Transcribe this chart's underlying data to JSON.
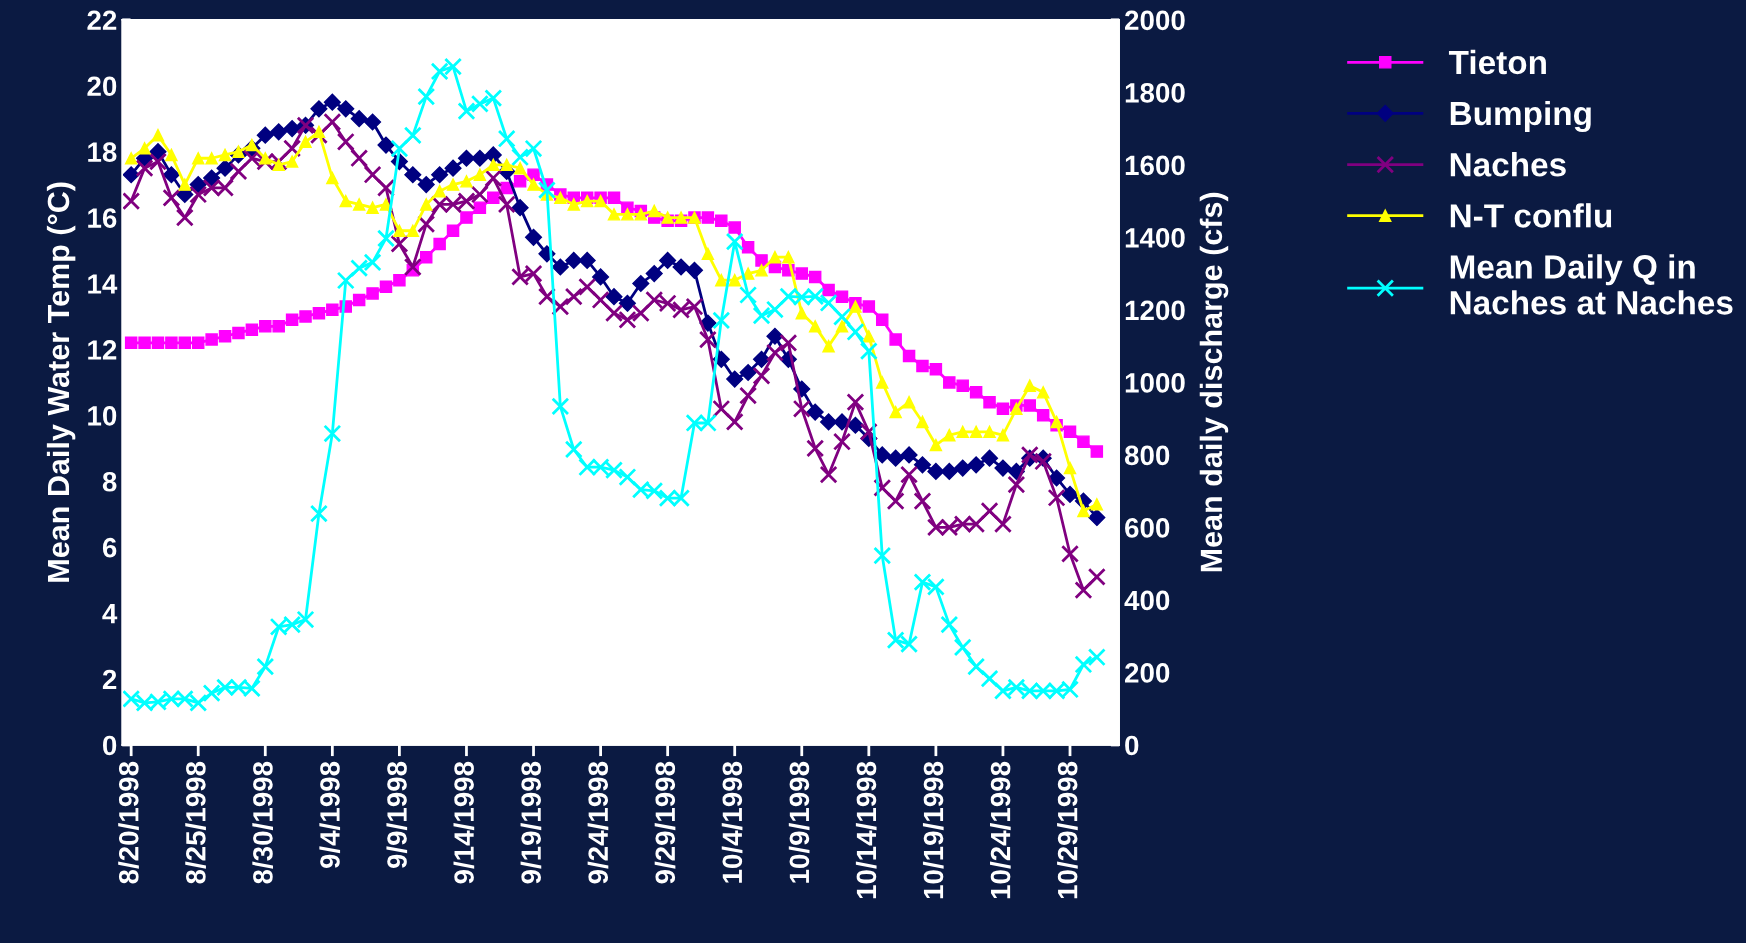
{
  "chart_data": {
    "type": "line",
    "x": [
      "1998-08-20",
      "1998-08-21",
      "1998-08-22",
      "1998-08-23",
      "1998-08-24",
      "1998-08-25",
      "1998-08-26",
      "1998-08-27",
      "1998-08-28",
      "1998-08-29",
      "1998-08-30",
      "1998-08-31",
      "1998-09-01",
      "1998-09-02",
      "1998-09-03",
      "1998-09-04",
      "1998-09-05",
      "1998-09-06",
      "1998-09-07",
      "1998-09-08",
      "1998-09-09",
      "1998-09-10",
      "1998-09-11",
      "1998-09-12",
      "1998-09-13",
      "1998-09-14",
      "1998-09-15",
      "1998-09-16",
      "1998-09-17",
      "1998-09-18",
      "1998-09-19",
      "1998-09-20",
      "1998-09-21",
      "1998-09-22",
      "1998-09-23",
      "1998-09-24",
      "1998-09-25",
      "1998-09-26",
      "1998-09-27",
      "1998-09-28",
      "1998-09-29",
      "1998-09-30",
      "1998-10-01",
      "1998-10-02",
      "1998-10-03",
      "1998-10-04",
      "1998-10-05",
      "1998-10-06",
      "1998-10-07",
      "1998-10-08",
      "1998-10-09",
      "1998-10-10",
      "1998-10-11",
      "1998-10-12",
      "1998-10-13",
      "1998-10-14",
      "1998-10-15",
      "1998-10-16",
      "1998-10-17",
      "1998-10-18",
      "1998-10-19",
      "1998-10-20",
      "1998-10-21",
      "1998-10-22",
      "1998-10-23",
      "1998-10-24",
      "1998-10-25",
      "1998-10-26",
      "1998-10-27",
      "1998-10-28",
      "1998-10-29",
      "1998-10-30",
      "1998-10-31"
    ],
    "ylabel": "Mean Daily Water Temp (°C)",
    "y2label": "Mean daily discharge (cfs)",
    "xlim": [
      "1998-08-19T08:00",
      "1998-11-01T16:00"
    ],
    "xticks": [
      {
        "value": "1998-08-20",
        "label": "8/20/1998"
      },
      {
        "value": "1998-08-25",
        "label": "8/25/1998"
      },
      {
        "value": "1998-08-30",
        "label": "8/30/1998"
      },
      {
        "value": "1998-09-04",
        "label": "9/4/1998"
      },
      {
        "value": "1998-09-09",
        "label": "9/9/1998"
      },
      {
        "value": "1998-09-14",
        "label": "9/14/1998"
      },
      {
        "value": "1998-09-19",
        "label": "9/19/1998"
      },
      {
        "value": "1998-09-24",
        "label": "9/24/1998"
      },
      {
        "value": "1998-09-29",
        "label": "9/29/1998"
      },
      {
        "value": "1998-10-04",
        "label": "10/4/1998"
      },
      {
        "value": "1998-10-09",
        "label": "10/9/1998"
      },
      {
        "value": "1998-10-14",
        "label": "10/14/1998"
      },
      {
        "value": "1998-10-19",
        "label": "10/19/1998"
      },
      {
        "value": "1998-10-24",
        "label": "10/24/1998"
      },
      {
        "value": "1998-10-29",
        "label": "10/29/1998"
      }
    ],
    "ylim": [
      0,
      22
    ],
    "yticks": [
      0,
      2,
      4,
      6,
      8,
      10,
      12,
      14,
      16,
      18,
      20,
      22
    ],
    "y2lim": [
      0,
      2000
    ],
    "y2ticks": [
      0,
      200,
      400,
      600,
      800,
      1000,
      1200,
      1400,
      1600,
      1800,
      2000
    ],
    "grid": false,
    "legend": "right",
    "line_style": "solid",
    "series": [
      {
        "name": "Tieton",
        "color": "#ff00ff",
        "marker": "square",
        "values": [
          12.2,
          12.2,
          12.2,
          12.2,
          12.2,
          12.2,
          12.3,
          12.4,
          12.5,
          12.6,
          12.7,
          12.7,
          12.9,
          13.0,
          13.1,
          13.2,
          13.3,
          13.5,
          13.7,
          13.9,
          14.1,
          14.4,
          14.8,
          15.2,
          15.6,
          16.0,
          16.3,
          16.6,
          16.9,
          17.1,
          17.3,
          17.0,
          16.7,
          16.6,
          16.6,
          16.6,
          16.6,
          16.3,
          16.2,
          16.0,
          15.9,
          15.9,
          16.0,
          16.0,
          15.9,
          15.7,
          15.1,
          14.7,
          14.5,
          14.4,
          14.3,
          14.2,
          13.8,
          13.6,
          13.4,
          13.3,
          12.9,
          12.3,
          11.8,
          11.5,
          11.4,
          11.0,
          10.9,
          10.7,
          10.4,
          10.2,
          10.3,
          10.3,
          10.0,
          9.7,
          9.5,
          9.2,
          8.9
        ]
      },
      {
        "name": "Bumping",
        "color": "#000080",
        "marker": "diamond",
        "values": [
          17.3,
          17.8,
          18.0,
          17.3,
          16.7,
          17.0,
          17.2,
          17.5,
          17.9,
          18.1,
          18.5,
          18.6,
          18.7,
          18.8,
          19.3,
          19.5,
          19.3,
          19.0,
          18.9,
          18.2,
          17.7,
          17.3,
          17.0,
          17.3,
          17.5,
          17.8,
          17.8,
          17.9,
          17.4,
          16.3,
          15.4,
          14.9,
          14.5,
          14.7,
          14.7,
          14.2,
          13.6,
          13.4,
          14.0,
          14.3,
          14.7,
          14.5,
          14.4,
          12.8,
          11.7,
          11.1,
          11.3,
          11.7,
          12.4,
          11.7,
          10.8,
          10.1,
          9.8,
          9.8,
          9.7,
          9.3,
          8.8,
          8.7,
          8.8,
          8.5,
          8.3,
          8.3,
          8.4,
          8.5,
          8.7,
          8.4,
          8.3,
          8.7,
          8.7,
          8.1,
          7.6,
          7.4,
          6.9
        ]
      },
      {
        "name": "Naches",
        "color": "#800080",
        "marker": "cross",
        "values": [
          16.5,
          17.5,
          17.7,
          16.6,
          16.0,
          16.7,
          16.9,
          16.9,
          17.4,
          17.8,
          17.7,
          17.7,
          18.1,
          18.8,
          18.5,
          18.9,
          18.3,
          17.8,
          17.3,
          16.9,
          15.2,
          14.5,
          15.8,
          16.4,
          16.4,
          16.5,
          16.7,
          17.2,
          16.4,
          14.2,
          14.3,
          13.6,
          13.3,
          13.6,
          13.9,
          13.5,
          13.1,
          12.9,
          13.1,
          13.5,
          13.4,
          13.2,
          13.3,
          12.3,
          10.2,
          9.8,
          10.6,
          11.2,
          11.9,
          12.2,
          10.2,
          9.0,
          8.2,
          9.2,
          10.4,
          9.5,
          7.8,
          7.4,
          8.2,
          7.4,
          6.6,
          6.6,
          6.7,
          6.7,
          7.1,
          6.7,
          7.9,
          8.8,
          8.6,
          7.5,
          5.8,
          4.7,
          5.1
        ]
      },
      {
        "name": "N-T conflu",
        "color": "#ffff00",
        "marker": "triangle",
        "values": [
          17.8,
          18.1,
          18.5,
          17.9,
          17.0,
          17.8,
          17.8,
          17.9,
          18.0,
          18.2,
          17.8,
          17.6,
          17.7,
          18.3,
          18.6,
          17.2,
          16.5,
          16.4,
          16.3,
          16.4,
          15.6,
          15.6,
          16.4,
          16.8,
          17.0,
          17.1,
          17.3,
          17.6,
          17.6,
          17.5,
          17.0,
          16.7,
          16.6,
          16.4,
          16.5,
          16.5,
          16.1,
          16.1,
          16.1,
          16.2,
          16.0,
          16.0,
          16.0,
          14.9,
          14.1,
          14.1,
          14.3,
          14.4,
          14.8,
          14.8,
          13.1,
          12.7,
          12.1,
          12.7,
          13.3,
          12.4,
          11.0,
          10.1,
          10.4,
          9.8,
          9.1,
          9.4,
          9.5,
          9.5,
          9.5,
          9.4,
          10.2,
          10.9,
          10.7,
          9.8,
          8.4,
          7.1,
          7.3
        ]
      },
      {
        "name": "Mean Daily Q in\nNaches at Naches",
        "color": "#00ffff",
        "marker": "cross",
        "axis": "y2",
        "values": [
          127,
          116,
          119,
          127,
          127,
          116,
          143,
          159,
          159,
          156,
          216,
          326,
          332,
          346,
          638,
          859,
          1281,
          1315,
          1331,
          1397,
          1645,
          1681,
          1788,
          1858,
          1871,
          1748,
          1768,
          1784,
          1672,
          1621,
          1645,
          1530,
          934,
          815,
          766,
          766,
          758,
          739,
          704,
          701,
          681,
          681,
          888,
          888,
          1171,
          1388,
          1241,
          1184,
          1201,
          1237,
          1235,
          1237,
          1219,
          1181,
          1139,
          1086,
          522,
          289,
          278,
          449,
          436,
          332,
          269,
          216,
          183,
          149,
          159,
          149,
          149,
          149,
          153,
          222,
          242
        ]
      }
    ]
  }
}
